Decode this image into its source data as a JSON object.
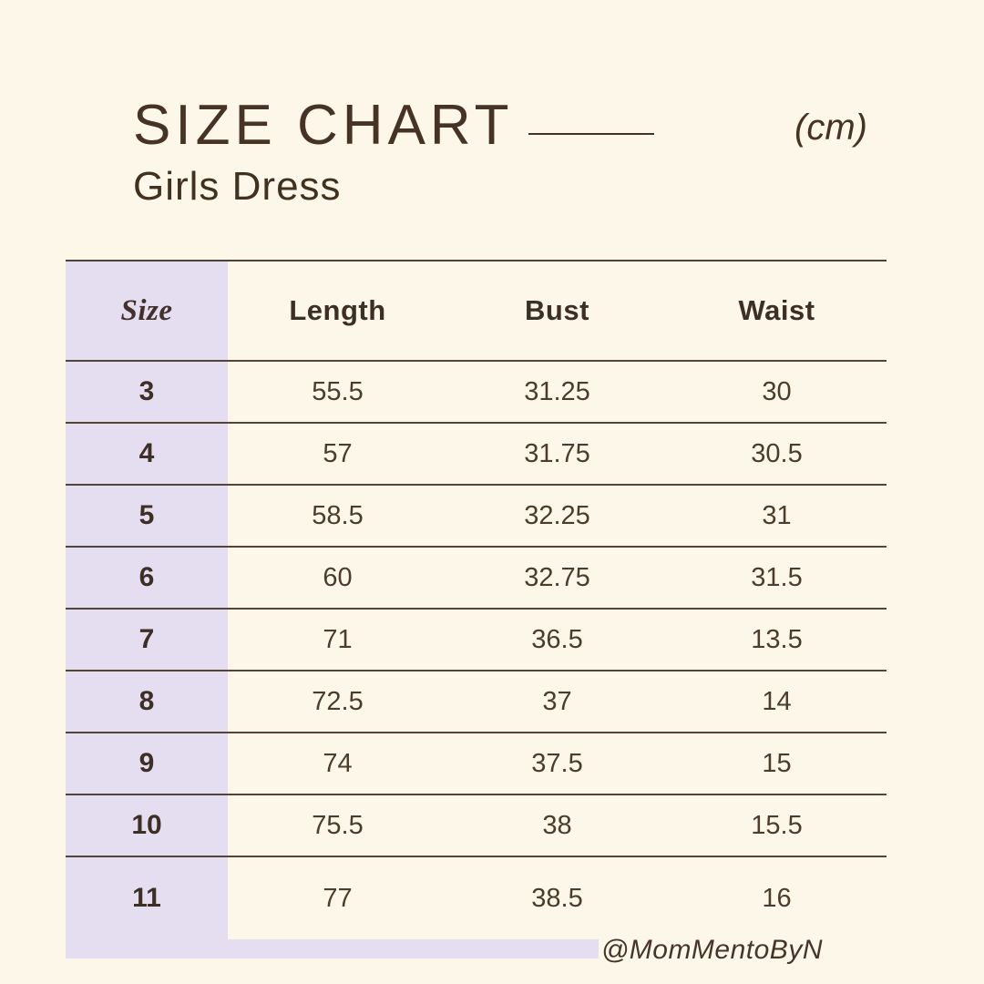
{
  "header": {
    "title": "SIZE CHART",
    "subtitle": "Girls Dress",
    "unit": "(cm)"
  },
  "chart_data": {
    "type": "table",
    "title": "SIZE CHART - Girls Dress (cm)",
    "columns": [
      "Size",
      "Length",
      "Bust",
      "Waist"
    ],
    "rows": [
      [
        "3",
        "55.5",
        "31.25",
        "30"
      ],
      [
        "4",
        "57",
        "31.75",
        "30.5"
      ],
      [
        "5",
        "58.5",
        "32.25",
        "31"
      ],
      [
        "6",
        "60",
        "32.75",
        "31.5"
      ],
      [
        "7",
        "71",
        "36.5",
        "13.5"
      ],
      [
        "8",
        "72.5",
        "37",
        "14"
      ],
      [
        "9",
        "74",
        "37.5",
        "15"
      ],
      [
        "10",
        "75.5",
        "38",
        "15.5"
      ],
      [
        "11",
        "77",
        "38.5",
        "16"
      ]
    ]
  },
  "footer": {
    "watermark": "@MomMentoByN"
  },
  "colors": {
    "background": "#fdf7e9",
    "accent_lavender": "#e5def1",
    "text_brown": "#473325",
    "line_brown": "#544539"
  }
}
